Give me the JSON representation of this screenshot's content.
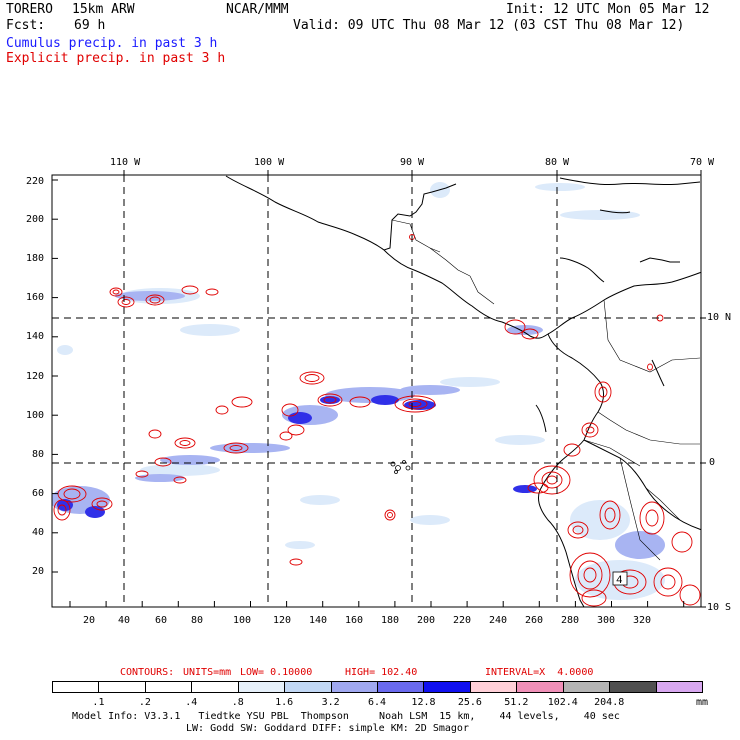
{
  "header": {
    "model": "TORERO",
    "resolution": "15km ARW",
    "org": "NCAR/MMM",
    "init": "Init: 12 UTC Mon 05 Mar 12",
    "fcst_label": "Fcst:",
    "fcst_value": "69 h",
    "valid": "Valid: 09 UTC Thu 08 Mar 12 (03 CST Thu 08 Mar 12)",
    "line_cumulus": "Cumulus precip. in past 3 h",
    "line_explicit": "Explicit precip. in past 3 h"
  },
  "axes": {
    "lon_labels": [
      "110 W",
      "100 W",
      "90 W",
      "80 W",
      "70 W"
    ],
    "lat_labels": [
      "10 N",
      "0",
      "10 S"
    ],
    "y_ticks": [
      "220",
      "200",
      "180",
      "160",
      "140",
      "120",
      "100",
      "80",
      "60",
      "40",
      "20"
    ],
    "x_ticks": [
      "20",
      "40",
      "60",
      "80",
      "100",
      "120",
      "140",
      "160",
      "180",
      "200",
      "220",
      "240",
      "260",
      "280",
      "300",
      "320"
    ]
  },
  "map_labels": {
    "max_marker": "4"
  },
  "contours": {
    "prefix": "CONTOURS:",
    "units": "UNITS=mm",
    "low": "LOW= 0.10000",
    "high": "HIGH= 102.40",
    "interval": "INTERVAL=X  4.0000"
  },
  "colorbar": {
    "units": "mm",
    "labels": [
      ".1",
      ".2",
      ".4",
      ".8",
      "1.6",
      "3.2",
      "6.4",
      "12.8",
      "25.6",
      "51.2",
      "102.4",
      "204.8"
    ],
    "colors": [
      "#ffffff",
      "#ffffff",
      "#ffffff",
      "#ffffff",
      "#e6f0fa",
      "#c2d8f5",
      "#a0a8f0",
      "#6a6aee",
      "#1010f0",
      "#ffd0d8",
      "#f090b8",
      "#b4b4b4",
      "#505050",
      "#d8a8f0"
    ]
  },
  "footer": {
    "line1": "Model Info: V3.3.1   Tiedtke YSU PBL  Thompson     Noah LSM  15 km,    44 levels,    40 sec",
    "line2": "LW: Godd SW: Goddard DIFF: simple KM: 2D Smagor"
  }
}
